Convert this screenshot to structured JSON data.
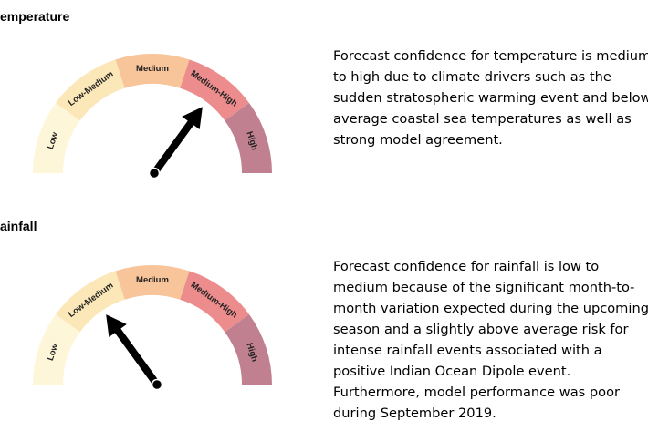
{
  "sections": [
    {
      "heading": "emperature",
      "segments": [
        "Low",
        "Low-Medium",
        "Medium",
        "Medium-High",
        "High"
      ],
      "needle_level": "Medium-High",
      "paragraph": [
        "Forecast confidence for temperature is medium",
        "to high due to climate drivers such as the",
        "sudden stratospheric warming event and below",
        "average coastal sea temperatures as well as",
        "strong model agreement."
      ]
    },
    {
      "heading": "ainfall",
      "segments": [
        "Low",
        "Low-Medium",
        "Medium",
        "Medium-High",
        "High"
      ],
      "needle_level": "Low-Medium",
      "paragraph": [
        "Forecast confidence for rainfall is low to",
        "medium because of the significant month-to-",
        "month variation expected during the upcoming",
        "season and a slightly above average risk for",
        "intense rainfall events associated with a",
        "positive Indian Ocean Dipole event.",
        "Furthermore, model performance was poor",
        "during  September 2019."
      ]
    }
  ],
  "colors": {
    "low": "#fdf6d8",
    "low_medium": "#fbe7b8",
    "medium": "#f8c49a",
    "medium_high": "#ec8c8c",
    "high": "#c08090",
    "needle": "#000000"
  }
}
